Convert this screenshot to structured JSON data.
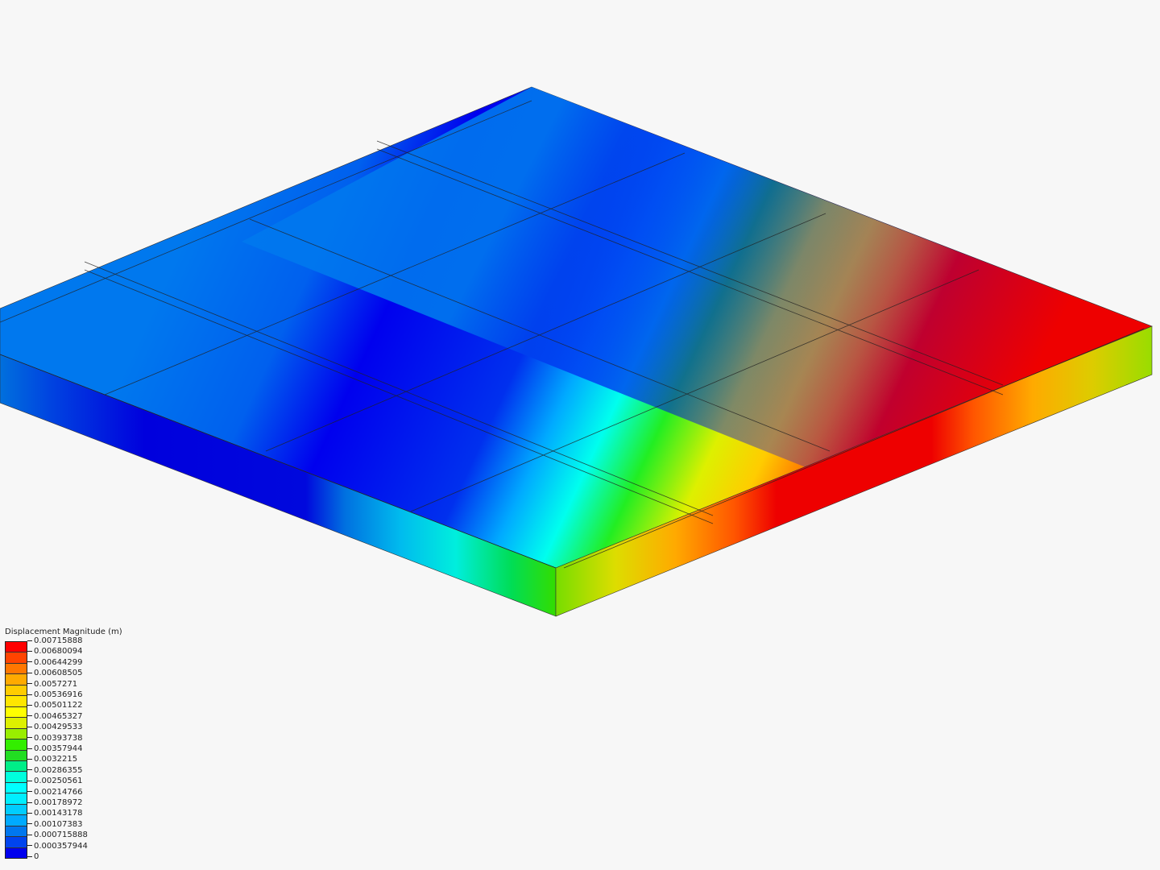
{
  "legend": {
    "title": "Displacement Magnitude (m)",
    "ticks": [
      "0.00715888",
      "0.00680094",
      "0.00644299",
      "0.00608505",
      "0.0057271",
      "0.00536916",
      "0.00501122",
      "0.00465327",
      "0.00429533",
      "0.00393738",
      "0.00357944",
      "0.0032215",
      "0.00286355",
      "0.00250561",
      "0.00214766",
      "0.00178972",
      "0.00143178",
      "0.00107383",
      "0.000715888",
      "0.000357944",
      "0"
    ],
    "band_colors": [
      "#ff0000",
      "#ff4400",
      "#ff7700",
      "#ffaa00",
      "#ffcc00",
      "#ffe600",
      "#ffff00",
      "#ddf000",
      "#99ee00",
      "#33ee00",
      "#22dd22",
      "#00ee88",
      "#00ffdd",
      "#00ffff",
      "#00eeff",
      "#00ccff",
      "#00aaff",
      "#0077ee",
      "#0044ee",
      "#0000ee"
    ]
  },
  "model": {
    "result_field": "Displacement Magnitude",
    "max_color": "#ff0000",
    "min_color": "#0000ee"
  }
}
